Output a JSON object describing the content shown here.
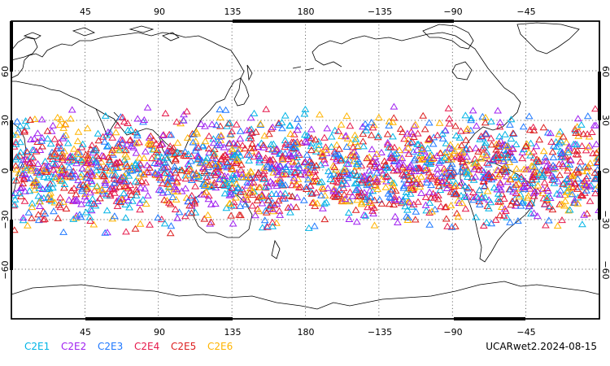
{
  "top_lon_labels": [
    "45",
    "90",
    "135",
    "180",
    "−135",
    "−90",
    "−45"
  ],
  "bottom_lon_labels": [
    "45",
    "90",
    "135",
    "180",
    "−135",
    "−90",
    "−45"
  ],
  "lat_labels": [
    "60",
    "30",
    "0",
    "−30",
    "−60"
  ],
  "legend": [
    {
      "label": "C2E1",
      "color": "#00b4e6"
    },
    {
      "label": "C2E2",
      "color": "#a020f0"
    },
    {
      "label": "C2E3",
      "color": "#1e78ff"
    },
    {
      "label": "C2E4",
      "color": "#e6194b"
    },
    {
      "label": "C2E5",
      "color": "#dc1e1e"
    },
    {
      "label": "C2E6",
      "color": "#ffb400"
    }
  ],
  "footer_text": "UCARwet2.2024-08-15",
  "map": {
    "projection": "equirectangular",
    "central_meridian": 180,
    "lon_range": [
      0,
      360
    ],
    "lat_range": [
      -90,
      90
    ],
    "gridlines": "dotted, every 45° longitude and 30° latitude",
    "observation_lat_band": [
      -45,
      45
    ],
    "marker": "triangle"
  }
}
